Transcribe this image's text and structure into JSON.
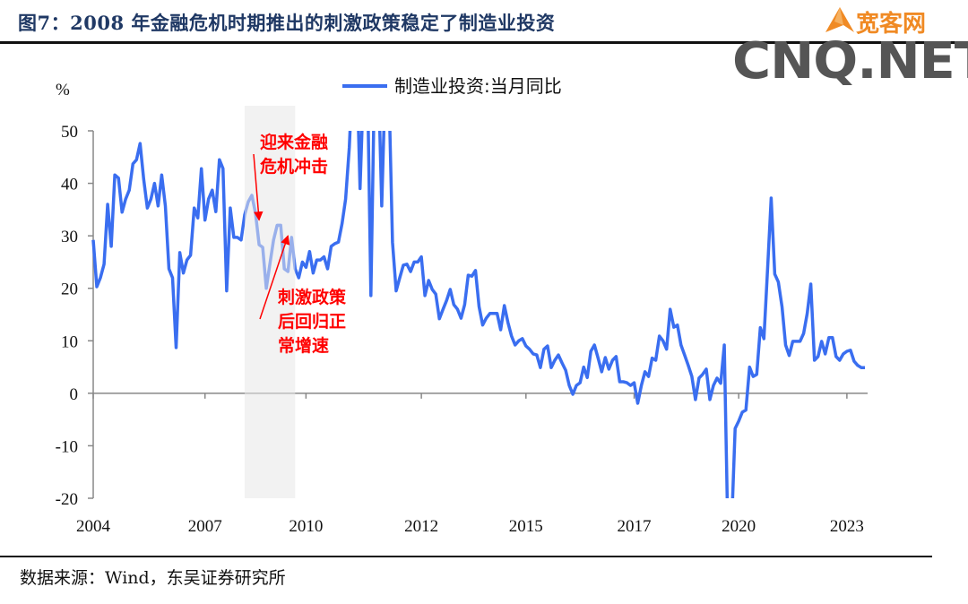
{
  "title": "图7：2008 年金融危机时期推出的刺激政策稳定了制造业投资",
  "logo": {
    "cn": "宽客网",
    "en": "CNQ.NET"
  },
  "source": "数据来源：Wind，东吴证券研究所",
  "colors": {
    "line": "#3a6ef0",
    "shade": "#e8e8e8",
    "annotation": "#ff0000",
    "title": "#1f3864"
  },
  "chart_data": {
    "type": "line",
    "title": "",
    "ylabel": "%",
    "xlabel": "",
    "ylim": [
      -20,
      50
    ],
    "yticks": [
      -20,
      -10,
      0,
      10,
      20,
      30,
      40,
      50
    ],
    "x_unit": "month index from start of 2004",
    "xlim": [
      0,
      214
    ],
    "xticks": [
      {
        "x": 0,
        "label": "2004"
      },
      {
        "x": 31,
        "label": "2007"
      },
      {
        "x": 59,
        "label": "2010"
      },
      {
        "x": 91,
        "label": "2012"
      },
      {
        "x": 120,
        "label": "2015"
      },
      {
        "x": 150,
        "label": "2017"
      },
      {
        "x": 179,
        "label": "2020"
      },
      {
        "x": 209,
        "label": "2023"
      }
    ],
    "legend": {
      "position": "top-center",
      "entries": [
        "制造业投资:当月同比"
      ]
    },
    "shaded_range": [
      42,
      56
    ],
    "series": [
      {
        "name": "制造业投资:当月同比",
        "values": [
          29.2,
          20.3,
          22,
          24.6,
          36,
          28,
          41.6,
          41,
          34.5,
          37,
          38.7,
          43.7,
          44.5,
          47.6,
          40.8,
          35.3,
          37,
          40,
          35.7,
          41.6,
          35.7,
          23.7,
          22,
          8.7,
          26.8,
          22.9,
          25.4,
          26.3,
          35.3,
          33.4,
          42.8,
          33,
          37,
          38.7,
          34.6,
          44.5,
          42.8,
          19.5,
          35.3,
          29.7,
          29.7,
          29.2,
          34,
          36.5,
          37.7,
          34.3,
          28.3,
          27.8,
          20,
          24.6,
          29.2,
          32,
          32,
          23.7,
          23.2,
          29.7,
          23.7,
          22,
          25,
          24,
          27,
          22.9,
          25.4,
          25.4,
          26,
          23.7,
          28,
          28.5,
          28.8,
          32.3,
          37,
          46.8,
          62,
          65,
          39,
          60,
          62,
          18.6,
          60,
          63,
          35.7,
          60,
          58,
          28.8,
          19.5,
          22,
          24.4,
          24.6,
          23.2,
          25,
          25,
          26,
          18.6,
          21.5,
          19.8,
          18.9,
          14.2,
          16,
          17.7,
          19.8,
          16.9,
          16,
          14.3,
          16.9,
          22.5,
          22.3,
          23.4,
          16.5,
          13,
          14.3,
          15.2,
          15.2,
          15.2,
          12.1,
          16.7,
          13.5,
          10.9,
          9.2,
          10,
          10.4,
          9,
          8.4,
          7.5,
          7.3,
          4.9,
          8.4,
          9,
          4.9,
          6.3,
          7.3,
          5.8,
          4.4,
          1.5,
          -0.2,
          1.5,
          2,
          5,
          3,
          8,
          9.2,
          6.7,
          4.1,
          6.8,
          4.6,
          6.3,
          7,
          2.2,
          2.2,
          2,
          1.5,
          2,
          -1.9,
          1.5,
          4.1,
          3.2,
          6.7,
          6.3,
          10.9,
          10,
          8.4,
          16,
          12.6,
          13,
          9.2,
          7.3,
          5.3,
          3.2,
          -1.2,
          2.9,
          3.6,
          4.6,
          -1.2,
          1.5,
          2.9,
          1.9,
          9.2,
          -27,
          -26,
          -6.7,
          -5.3,
          -3.6,
          -3.2,
          5,
          3.2,
          3.6,
          12.5,
          10.4,
          23.7,
          37.2,
          22.7,
          21.2,
          16.5,
          9.2,
          7.2,
          9.9,
          9.9,
          9.9,
          11.4,
          15.2,
          20.8,
          6.3,
          7,
          9.9,
          7.5,
          10.6,
          10.6,
          7,
          6.3,
          7.5,
          8,
          8.2,
          6.1,
          5.3,
          4.9,
          4.9
        ]
      }
    ],
    "annotations": [
      {
        "lines": [
          "迎来金融",
          "危机冲击"
        ],
        "arrow_to": {
          "x": 46,
          "y": 33
        }
      },
      {
        "lines": [
          "刺激政策",
          "后回归正",
          "常增速"
        ],
        "arrow_to": {
          "x": 54,
          "y": 30
        }
      }
    ]
  }
}
